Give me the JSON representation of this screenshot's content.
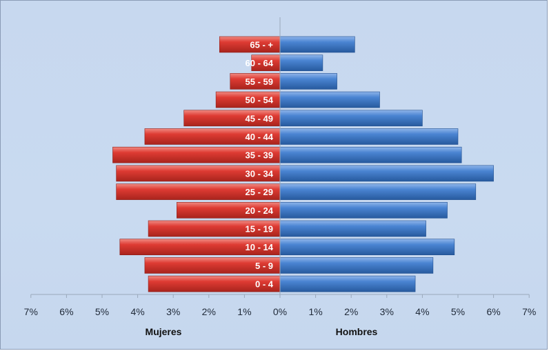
{
  "chart_data": {
    "type": "bar",
    "orientation": "horizontal",
    "subtype": "population-pyramid",
    "categories": [
      "65 - +",
      "60 - 64",
      "55 - 59",
      "50 - 54",
      "45 - 49",
      "40 - 44",
      "35 - 39",
      "30 - 34",
      "25 - 29",
      "20 - 24",
      "15 - 19",
      "10 - 14",
      "5 - 9",
      "0 - 4"
    ],
    "series": [
      {
        "name": "Mujeres",
        "side": "left",
        "color": "#d9322a",
        "values": [
          1.7,
          0.8,
          1.4,
          1.8,
          2.7,
          3.8,
          4.7,
          4.6,
          4.6,
          2.9,
          3.7,
          4.5,
          3.8,
          3.7
        ]
      },
      {
        "name": "Hombres",
        "side": "right",
        "color": "#3a74c4",
        "values": [
          2.1,
          1.2,
          1.6,
          2.8,
          4.0,
          5.0,
          5.1,
          6.0,
          5.5,
          4.7,
          4.1,
          4.9,
          4.3,
          3.8
        ]
      }
    ],
    "xlim": [
      -7,
      7
    ],
    "xticks": [
      "7%",
      "6%",
      "5%",
      "4%",
      "3%",
      "2%",
      "1%",
      "0%",
      "1%",
      "2%",
      "3%",
      "4%",
      "5%",
      "6%",
      "7%"
    ],
    "side_labels": {
      "left": "Mujeres",
      "right": "Hombres"
    },
    "colors": {
      "female": "#d9322a",
      "male": "#3a74c4",
      "background": "#c8d9ef",
      "axis": "#9aa8bb"
    }
  }
}
